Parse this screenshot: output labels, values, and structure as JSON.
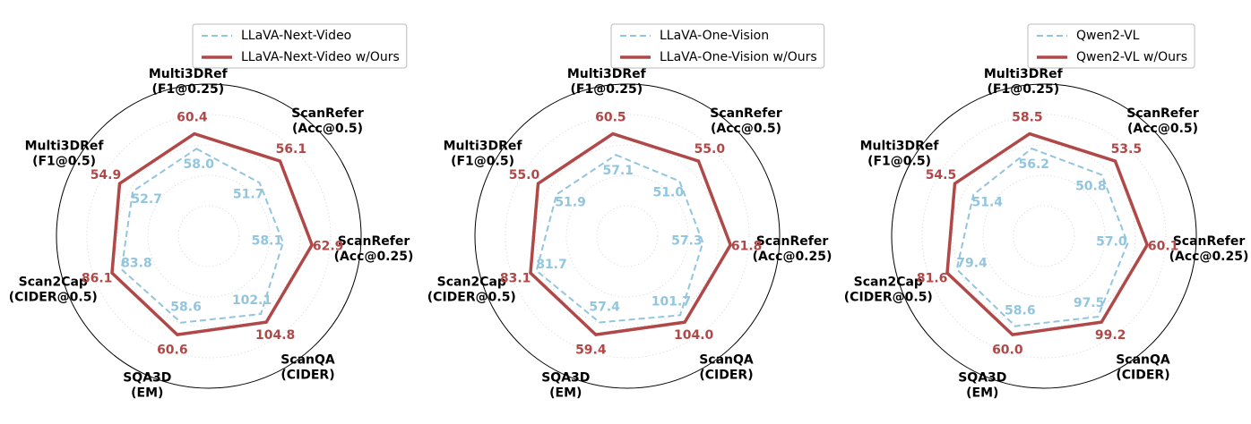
{
  "chart_data": [
    {
      "type": "radar",
      "categories": [
        [
          "Multi3DRef",
          "(F1@0.25)"
        ],
        [
          "ScanRefer",
          "(Acc@0.5)"
        ],
        [
          "ScanRefer",
          "(Acc@0.25)"
        ],
        [
          "ScanQA",
          "(CIDER)"
        ],
        [
          "SQA3D",
          "(EM)"
        ],
        [
          "Scan2Cap",
          "(CIDER@0.5)"
        ],
        [
          "Multi3DRef",
          "(F1@0.5)"
        ]
      ],
      "series": [
        {
          "name": "LLaVA-Next-Video",
          "color": "#92c5de",
          "dash": true,
          "values": [
            58.0,
            51.7,
            58.1,
            102.1,
            58.6,
            83.8,
            52.7
          ],
          "value_labels": [
            "58.0",
            "51.7",
            "58.1",
            "102.1",
            "58.6",
            "83.8",
            "52.7"
          ]
        },
        {
          "name": "LLaVA-Next-Video w/Ours",
          "color": "#b04848",
          "dash": false,
          "values": [
            60.4,
            56.1,
            62.9,
            104.8,
            60.6,
            86.1,
            54.9
          ],
          "value_labels": [
            "60.4",
            "56.1",
            "62.9",
            "104.8",
            "60.6",
            "86.1",
            "54.9"
          ]
        }
      ]
    },
    {
      "type": "radar",
      "categories": [
        [
          "Multi3DRef",
          "(F1@0.25)"
        ],
        [
          "ScanRefer",
          "(Acc@0.5)"
        ],
        [
          "ScanRefer",
          "(Acc@0.25)"
        ],
        [
          "ScanQA",
          "(CIDER)"
        ],
        [
          "SQA3D",
          "(EM)"
        ],
        [
          "Scan2Cap",
          "(CIDER@0.5)"
        ],
        [
          "Multi3DRef",
          "(F1@0.5)"
        ]
      ],
      "series": [
        {
          "name": "LLaVA-One-Vision",
          "color": "#92c5de",
          "dash": true,
          "values": [
            57.1,
            51.0,
            57.3,
            101.7,
            57.4,
            81.7,
            51.9
          ],
          "value_labels": [
            "57.1",
            "51.0",
            "57.3",
            "101.7",
            "57.4",
            "81.7",
            "51.9"
          ]
        },
        {
          "name": "LLaVA-One-Vision w/Ours",
          "color": "#b04848",
          "dash": false,
          "values": [
            60.5,
            55.0,
            61.8,
            104.0,
            59.4,
            83.1,
            55.0
          ],
          "value_labels": [
            "60.5",
            "55.0",
            "61.8",
            "104.0",
            "59.4",
            "83.1",
            "55.0"
          ]
        }
      ]
    },
    {
      "type": "radar",
      "categories": [
        [
          "Multi3DRef",
          "(F1@0.25)"
        ],
        [
          "ScanRefer",
          "(Acc@0.5)"
        ],
        [
          "ScanRefer",
          "(Acc@0.25)"
        ],
        [
          "ScanQA",
          "(CIDER)"
        ],
        [
          "SQA3D",
          "(EM)"
        ],
        [
          "Scan2Cap",
          "(CIDER@0.5)"
        ],
        [
          "Multi3DRef",
          "(F1@0.5)"
        ]
      ],
      "series": [
        {
          "name": "Qwen2-VL",
          "color": "#92c5de",
          "dash": true,
          "values": [
            56.2,
            50.8,
            57.0,
            97.5,
            58.6,
            79.4,
            51.4
          ],
          "value_labels": [
            "56.2",
            "50.8",
            "57.0",
            "97.5",
            "58.6",
            "79.4",
            "51.4"
          ]
        },
        {
          "name": "Qwen2-VL w/Ours",
          "color": "#b04848",
          "dash": false,
          "values": [
            58.5,
            53.5,
            60.1,
            99.2,
            60.0,
            81.6,
            54.5
          ],
          "value_labels": [
            "58.5",
            "53.5",
            "60.1",
            "99.2",
            "60.0",
            "81.6",
            "54.5"
          ]
        }
      ]
    }
  ]
}
